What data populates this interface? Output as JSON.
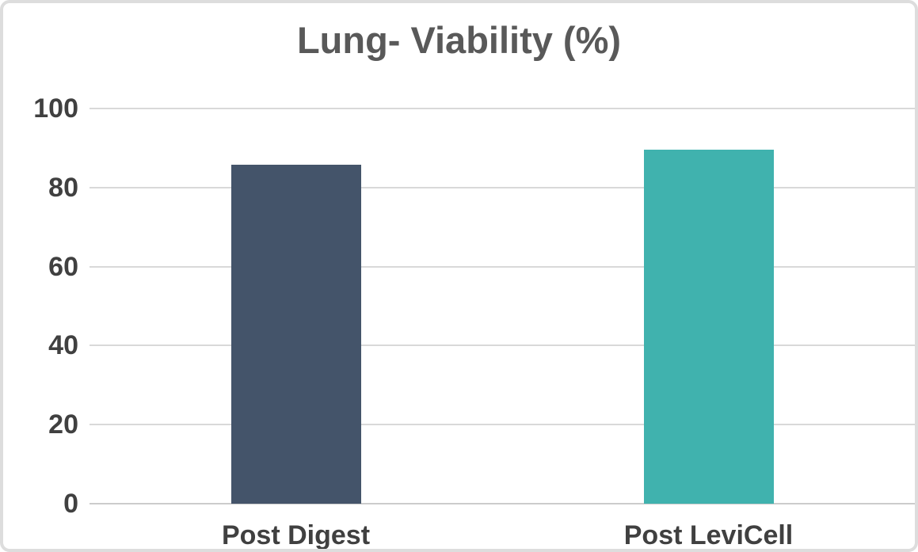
{
  "card": {
    "background": "#ffffff",
    "border_color": "#dddddd"
  },
  "chart_data": {
    "type": "bar",
    "title": "Lung- Viability (%)",
    "categories": [
      "Post Digest",
      "Post LeviCell"
    ],
    "values": [
      85.7,
      89.6
    ],
    "bar_colors": [
      "#44546A",
      "#40B2AE"
    ],
    "xlabel": "",
    "ylabel": "",
    "ylim": [
      0,
      100
    ],
    "yticks": [
      0,
      20,
      40,
      60,
      80,
      100
    ],
    "gridlines": "horizontal",
    "legend_position": "none"
  },
  "style_colors": {
    "title_text": "#595959",
    "axis_text": "#404040",
    "gridline": "#d9d9d9",
    "axis_line": "#cccccc"
  }
}
